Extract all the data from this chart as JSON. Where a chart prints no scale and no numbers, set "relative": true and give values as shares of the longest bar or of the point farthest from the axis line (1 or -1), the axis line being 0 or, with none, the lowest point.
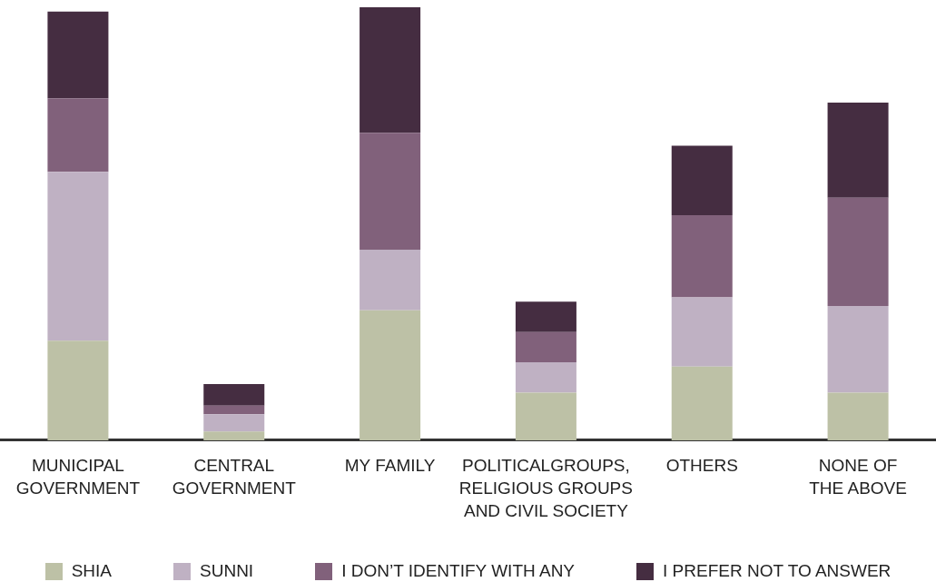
{
  "chart_data": {
    "type": "bar",
    "stacked": true,
    "relative": true,
    "legend": "bottom",
    "categories": [
      "MUNICIPAL\nGOVERNMENT",
      "CENTRAL\nGOVERNMENT",
      "MY FAMILY",
      "POLITICALGROUPS,\nRELIGIOUS GROUPS\nAND CIVIL SOCIETY",
      "OTHERS",
      "NONE OF\nTHE ABOVE"
    ],
    "series": [
      {
        "name": "SHIA",
        "color": "#bdc1a6",
        "values": [
          0.23,
          0.02,
          0.3,
          0.11,
          0.17,
          0.11
        ]
      },
      {
        "name": "SUNNI",
        "color": "#bfb1c3",
        "values": [
          0.39,
          0.04,
          0.14,
          0.07,
          0.16,
          0.2
        ]
      },
      {
        "name": "I DON’T IDENTIFY WITH ANY",
        "color": "#81617b",
        "values": [
          0.17,
          0.02,
          0.27,
          0.07,
          0.19,
          0.25
        ]
      },
      {
        "name": "I PREFER NOT TO ANSWER",
        "color": "#452d41",
        "values": [
          0.2,
          0.05,
          0.29,
          0.07,
          0.16,
          0.22
        ]
      }
    ]
  }
}
